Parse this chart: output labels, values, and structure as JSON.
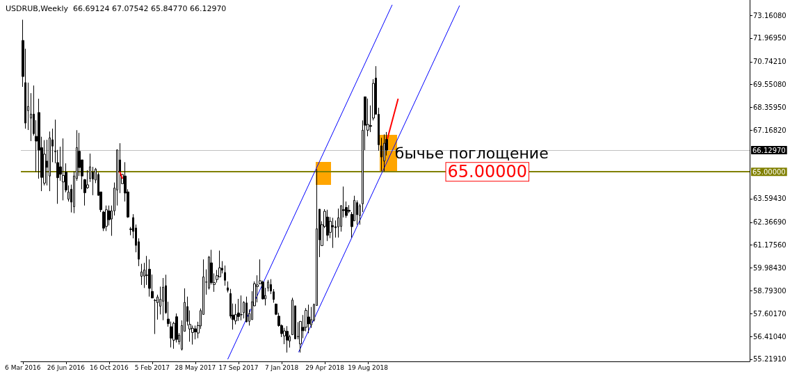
{
  "chart_data": {
    "type": "candlestick",
    "title": "USDRUB,Weekly  66.69124 67.07542 65.84770 66.12970",
    "x": [
      "2016-03-06",
      "2016-03-13",
      "2016-03-20",
      "2016-03-27",
      "2016-04-03",
      "2016-04-10",
      "2016-04-17",
      "2016-04-24",
      "2016-05-01",
      "2016-05-08",
      "2016-05-15",
      "2016-05-22",
      "2016-05-29",
      "2016-06-05",
      "2016-06-12",
      "2016-06-19",
      "2016-06-26",
      "2016-07-03",
      "2016-07-10",
      "2016-07-17",
      "2016-07-24",
      "2016-07-31",
      "2016-08-07",
      "2016-08-14",
      "2016-08-21",
      "2016-08-28",
      "2016-09-04",
      "2016-09-11",
      "2016-09-18",
      "2016-09-25",
      "2016-10-02",
      "2016-10-09",
      "2016-10-16",
      "2016-10-23",
      "2016-10-30",
      "2016-11-06",
      "2016-11-13",
      "2016-11-20",
      "2016-11-27",
      "2016-12-04",
      "2016-12-11",
      "2016-12-18",
      "2016-12-25",
      "2017-01-01",
      "2017-01-08",
      "2017-01-15",
      "2017-01-22",
      "2017-01-29",
      "2017-02-05",
      "2017-02-12",
      "2017-02-19",
      "2017-02-26",
      "2017-03-05",
      "2017-03-12",
      "2017-03-19",
      "2017-03-26",
      "2017-04-02",
      "2017-04-09",
      "2017-04-16",
      "2017-04-23",
      "2017-04-30",
      "2017-05-07",
      "2017-05-14",
      "2017-05-21",
      "2017-05-28",
      "2017-06-04",
      "2017-06-11",
      "2017-06-18",
      "2017-06-25",
      "2017-07-02",
      "2017-07-09",
      "2017-07-16",
      "2017-07-23",
      "2017-07-30",
      "2017-08-06",
      "2017-08-13",
      "2017-08-20",
      "2017-08-27",
      "2017-09-03",
      "2017-09-10",
      "2017-09-17",
      "2017-09-24",
      "2017-10-01",
      "2017-10-08",
      "2017-10-15",
      "2017-10-22",
      "2017-10-29",
      "2017-11-05",
      "2017-11-12",
      "2017-11-19",
      "2017-11-26",
      "2017-12-03",
      "2017-12-10",
      "2017-12-17",
      "2017-12-24",
      "2017-12-31",
      "2018-01-07",
      "2018-01-14",
      "2018-01-21",
      "2018-01-28",
      "2018-02-04",
      "2018-02-11",
      "2018-02-18",
      "2018-02-25",
      "2018-03-04",
      "2018-03-11",
      "2018-03-18",
      "2018-03-25",
      "2018-04-01",
      "2018-04-08",
      "2018-04-15",
      "2018-04-22",
      "2018-04-29",
      "2018-05-06",
      "2018-05-13",
      "2018-05-20",
      "2018-05-27",
      "2018-06-03",
      "2018-06-10",
      "2018-06-17",
      "2018-06-24",
      "2018-07-01",
      "2018-07-08",
      "2018-07-15",
      "2018-07-22",
      "2018-07-29",
      "2018-08-05",
      "2018-08-12",
      "2018-08-19",
      "2018-08-26",
      "2018-09-02",
      "2018-09-09",
      "2018-09-16",
      "2018-09-23",
      "2018-09-30",
      "2018-10-07"
    ],
    "ohlc": [
      [
        71.85,
        72.93,
        69.43,
        69.97
      ],
      [
        69.65,
        71.42,
        67.25,
        67.54
      ],
      [
        68.19,
        69.65,
        67.18,
        68.41
      ],
      [
        67.8,
        69.1,
        66.6,
        68.01
      ],
      [
        68.01,
        69.5,
        66.89,
        66.99
      ],
      [
        66.85,
        67.69,
        65.0,
        66.6
      ],
      [
        68.09,
        68.81,
        64.64,
        66.13
      ],
      [
        66.26,
        66.83,
        63.99,
        64.71
      ],
      [
        64.41,
        66.65,
        64.29,
        65.92
      ],
      [
        65.56,
        66.67,
        64.29,
        65.23
      ],
      [
        64.78,
        67.1,
        63.99,
        66.77
      ],
      [
        66.67,
        67.25,
        65.5,
        66.34
      ],
      [
        66.07,
        67.72,
        65.44,
        66.05
      ],
      [
        65.48,
        66.14,
        63.33,
        64.69
      ],
      [
        65.26,
        66.31,
        64.53,
        64.87
      ],
      [
        64.47,
        66.74,
        63.51,
        64.81
      ],
      [
        64.98,
        65.44,
        63.93,
        64.05
      ],
      [
        63.57,
        64.29,
        63.45,
        63.95
      ],
      [
        64.09,
        64.33,
        62.88,
        63.42
      ],
      [
        63.18,
        65.02,
        62.84,
        64.78
      ],
      [
        64.65,
        67.17,
        64.53,
        66.26
      ],
      [
        66.07,
        67.03,
        64.78,
        65.22
      ],
      [
        65.62,
        65.62,
        64.09,
        64.78
      ],
      [
        64.59,
        64.62,
        63.24,
        63.91
      ],
      [
        64.17,
        65.08,
        64.11,
        64.32
      ],
      [
        64.65,
        65.95,
        64.47,
        65.26
      ],
      [
        64.98,
        65.26,
        63.78,
        64.62
      ],
      [
        64.57,
        65.2,
        64.41,
        65.14
      ],
      [
        64.86,
        64.96,
        63.75,
        63.77
      ],
      [
        63.95,
        63.95,
        62.9,
        63.02
      ],
      [
        62.9,
        62.96,
        61.91,
        62.06
      ],
      [
        62.15,
        63.24,
        61.91,
        63.02
      ],
      [
        62.96,
        63.24,
        62.2,
        62.5
      ],
      [
        62.54,
        63.24,
        61.66,
        62.96
      ],
      [
        62.96,
        64.44,
        62.72,
        64.15
      ],
      [
        64.05,
        66.16,
        63.24,
        66.14
      ],
      [
        65.62,
        66.49,
        63.89,
        64.98
      ],
      [
        64.38,
        64.89,
        64.38,
        64.86
      ],
      [
        64.78,
        65.5,
        63.45,
        63.89
      ],
      [
        63.95,
        64.09,
        62.6,
        62.64
      ],
      [
        62.02,
        62.12,
        61.69,
        61.99
      ],
      [
        62.61,
        62.79,
        61.53,
        61.89
      ],
      [
        62.07,
        62.25,
        60.8,
        61.16
      ],
      [
        61.35,
        61.53,
        60.08,
        60.44
      ],
      [
        59.55,
        60.2,
        59.1,
        59.78
      ],
      [
        59.56,
        60.25,
        58.94,
        59.88
      ],
      [
        59.61,
        60.61,
        59.1,
        59.6
      ],
      [
        59.92,
        60.43,
        58.49,
        58.92
      ],
      [
        58.76,
        59.64,
        58.4,
        58.42
      ],
      [
        58.29,
        58.37,
        56.54,
        58.28
      ],
      [
        58.17,
        58.59,
        57.29,
        58.47
      ],
      [
        57.99,
        59.01,
        57.56,
        58.35
      ],
      [
        58.25,
        59.46,
        57.26,
        58.98
      ],
      [
        59.06,
        59.63,
        57.59,
        57.65
      ],
      [
        57.32,
        58.22,
        56.92,
        57.08
      ],
      [
        56.92,
        57.19,
        55.84,
        56.32
      ],
      [
        56.22,
        57.18,
        55.77,
        57.1
      ],
      [
        57.44,
        57.61,
        56.1,
        56.26
      ],
      [
        56.14,
        56.59,
        55.99,
        56.48
      ],
      [
        55.75,
        57.25,
        55.68,
        56.98
      ],
      [
        56.68,
        58.92,
        56.68,
        58.19
      ],
      [
        57.97,
        58.49,
        56.98,
        57.2
      ],
      [
        56.8,
        57.77,
        56.14,
        57.04
      ],
      [
        56.62,
        56.98,
        55.99,
        56.84
      ],
      [
        56.81,
        56.98,
        56.26,
        56.65
      ],
      [
        56.59,
        57.18,
        56.32,
        56.98
      ],
      [
        56.96,
        57.87,
        56.8,
        57.76
      ],
      [
        57.56,
        60.43,
        57.56,
        59.52
      ],
      [
        59.25,
        59.91,
        58.59,
        59.24
      ],
      [
        58.94,
        60.61,
        58.86,
        60.55
      ],
      [
        60.25,
        60.93,
        59.12,
        59.22
      ],
      [
        59.12,
        59.7,
        58.74,
        59.22
      ],
      [
        59.38,
        59.88,
        59.22,
        59.58
      ],
      [
        59.52,
        60.89,
        59.5,
        59.99
      ],
      [
        59.97,
        60.34,
        59.7,
        59.87
      ],
      [
        59.75,
        60.11,
        59.06,
        59.34
      ],
      [
        58.95,
        59.28,
        58.71,
        58.82
      ],
      [
        58.65,
        58.89,
        57.35,
        57.47
      ],
      [
        57.53,
        58.13,
        56.77,
        57.29
      ],
      [
        57.22,
        58.11,
        57.04,
        57.55
      ],
      [
        57.64,
        58.37,
        57.22,
        57.45
      ],
      [
        57.55,
        58.55,
        57.25,
        57.54
      ],
      [
        57.65,
        58.25,
        57.35,
        58.19
      ],
      [
        58.16,
        58.49,
        57.14,
        57.18
      ],
      [
        57.2,
        57.83,
        56.98,
        57.61
      ],
      [
        57.29,
        58.77,
        57.29,
        58.22
      ],
      [
        58.01,
        59.28,
        57.99,
        59.16
      ],
      [
        59.01,
        59.6,
        58.19,
        59.1
      ],
      [
        59.16,
        60.43,
        59.13,
        59.32
      ],
      [
        59.25,
        59.32,
        58.34,
        58.37
      ],
      [
        58.37,
        58.95,
        58.03,
        58.55
      ],
      [
        58.94,
        59.36,
        58.76,
        59.25
      ],
      [
        59.12,
        59.4,
        58.62,
        58.78
      ],
      [
        58.74,
        58.88,
        58.17,
        58.34
      ],
      [
        58.1,
        58.13,
        57.53,
        57.57
      ],
      [
        57.47,
        57.65,
        56.92,
        56.98
      ],
      [
        56.98,
        57.04,
        56.38,
        56.56
      ],
      [
        56.44,
        56.86,
        56.01,
        56.7
      ],
      [
        56.68,
        56.95,
        55.57,
        56.22
      ],
      [
        56.17,
        56.5,
        55.83,
        56.4
      ],
      [
        56.5,
        58.43,
        56.5,
        58.31
      ],
      [
        58.01,
        58.01,
        56.26,
        56.29
      ],
      [
        56.41,
        57.16,
        56.26,
        56.4
      ],
      [
        56.02,
        57.2,
        55.57,
        57.2
      ],
      [
        56.89,
        57.53,
        56.32,
        56.71
      ],
      [
        56.89,
        57.89,
        56.68,
        57.77
      ],
      [
        57.43,
        58.07,
        56.58,
        57.07
      ],
      [
        57.01,
        57.95,
        56.86,
        57.29
      ],
      [
        57.26,
        58.13,
        57.19,
        58.07
      ],
      [
        58.03,
        65.14,
        58.03,
        62.03
      ],
      [
        63.05,
        63.05,
        60.55,
        61.45
      ],
      [
        61.15,
        62.42,
        61.15,
        62.24
      ],
      [
        62.15,
        63.05,
        62.06,
        62.94
      ],
      [
        62.64,
        63.02,
        61.39,
        61.69
      ],
      [
        61.84,
        62.64,
        61.54,
        62.42
      ],
      [
        62.2,
        62.6,
        61.03,
        62.12
      ],
      [
        62.14,
        62.46,
        61.57,
        62.08
      ],
      [
        62.12,
        63.08,
        61.57,
        62.6
      ],
      [
        62.15,
        63.26,
        61.88,
        63.23
      ],
      [
        63.02,
        64.23,
        62.62,
        62.98
      ],
      [
        63.14,
        63.45,
        62.6,
        62.72
      ],
      [
        62.99,
        63.26,
        62.84,
        62.94
      ],
      [
        62.78,
        62.9,
        61.57,
        62.14
      ],
      [
        62.44,
        63.75,
        62.44,
        63.51
      ],
      [
        63.39,
        63.51,
        62.24,
        62.76
      ],
      [
        62.72,
        63.33,
        62.24,
        63.23
      ],
      [
        63.33,
        67.68,
        62.9,
        67.17
      ],
      [
        68.91,
        68.91,
        66.13,
        67.43
      ],
      [
        67.17,
        68.82,
        66.85,
        67.47
      ],
      [
        67.41,
        68.46,
        67.07,
        67.37
      ],
      [
        67.8,
        69.83,
        67.68,
        69.61
      ],
      [
        69.89,
        70.51,
        68.0,
        68.0
      ],
      [
        68.0,
        68.34,
        66.1,
        66.41
      ],
      [
        66.35,
        66.77,
        65.04,
        65.77
      ],
      [
        65.56,
        66.95,
        65.02,
        66.49
      ],
      [
        66.69124,
        67.07542,
        65.8477,
        66.1297
      ]
    ],
    "series": [
      {
        "type": "line",
        "color": "#0000ff",
        "x": [
          "2017-08-20",
          "2018-10-21"
        ],
        "values": [
          55.22,
          73.71
        ]
      },
      {
        "type": "line",
        "color": "#0000ff",
        "x": [
          "2018-02-20",
          "2019-04-14"
        ],
        "values": [
          55.59,
          73.67
        ]
      }
    ],
    "xlim": [
      "2016-03-01",
      "2021-05-06"
    ],
    "xticks": [
      {
        "value": "2016-03-06",
        "label": "6 Mar 2016"
      },
      {
        "value": "2016-06-26",
        "label": "26 Jun 2016"
      },
      {
        "value": "2016-10-16",
        "label": "16 Oct 2016"
      },
      {
        "value": "2017-02-05",
        "label": "5 Feb 2017"
      },
      {
        "value": "2017-05-28",
        "label": "28 May 2017"
      },
      {
        "value": "2017-09-17",
        "label": "17 Sep 2017"
      },
      {
        "value": "2018-01-07",
        "label": "7 Jan 2018"
      },
      {
        "value": "2018-04-29",
        "label": "29 Apr 2018"
      },
      {
        "value": "2018-08-19",
        "label": "19 Aug 2018"
      }
    ],
    "ylim": [
      55.11,
      73.96
    ],
    "yticks": [
      {
        "value": 55.2191,
        "label": "55.21910"
      },
      {
        "value": 56.4104,
        "label": "56.41040"
      },
      {
        "value": 57.6017,
        "label": "57.60170"
      },
      {
        "value": 58.793,
        "label": "58.79300"
      },
      {
        "value": 59.9843,
        "label": "59.98430"
      },
      {
        "value": 61.1756,
        "label": "61.17560"
      },
      {
        "value": 62.3669,
        "label": "62.36690"
      },
      {
        "value": 63.5943,
        "label": "63.59430"
      },
      {
        "value": 67.1682,
        "label": "67.16820"
      },
      {
        "value": 68.3595,
        "label": "68.35950"
      },
      {
        "value": 69.5508,
        "label": "69.55080"
      },
      {
        "value": 70.7421,
        "label": "70.74210"
      },
      {
        "value": 71.9695,
        "label": "71.96950"
      },
      {
        "value": 73.1608,
        "label": "73.16080"
      }
    ],
    "ref_lines": [
      {
        "axis": "y",
        "value": 66.1297,
        "label": "66.12970",
        "color": "#c0c0c0"
      },
      {
        "axis": "y",
        "value": 65,
        "label": "65.00000",
        "color": "#808000"
      }
    ],
    "annotations": [
      {
        "text": "бычье поглощение",
        "x": "2018-10-28",
        "y": 65.95
      },
      {
        "text": "65.00000",
        "x": "2019-03-10",
        "y": 65
      }
    ],
    "grid": false
  }
}
